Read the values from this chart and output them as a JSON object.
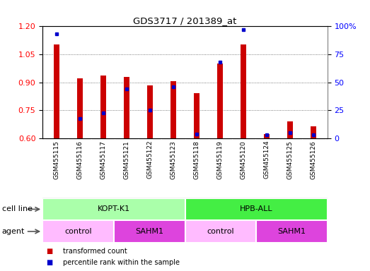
{
  "title": "GDS3717 / 201389_at",
  "samples": [
    "GSM455115",
    "GSM455116",
    "GSM455117",
    "GSM455121",
    "GSM455122",
    "GSM455123",
    "GSM455118",
    "GSM455119",
    "GSM455120",
    "GSM455124",
    "GSM455125",
    "GSM455126"
  ],
  "transformed_counts": [
    1.1,
    0.92,
    0.935,
    0.93,
    0.885,
    0.907,
    0.84,
    1.0,
    1.1,
    0.625,
    0.69,
    0.665
  ],
  "percentile_ranks": [
    93,
    18,
    23,
    44,
    25,
    46,
    4,
    68,
    97,
    3,
    5,
    3
  ],
  "ylim_left": [
    0.6,
    1.2
  ],
  "ylim_right": [
    0,
    100
  ],
  "yticks_left": [
    0.6,
    0.75,
    0.9,
    1.05,
    1.2
  ],
  "yticks_right": [
    0,
    25,
    50,
    75,
    100
  ],
  "bar_color": "#cc0000",
  "dot_color": "#0000cc",
  "bar_width": 0.25,
  "cell_line_groups": [
    {
      "label": "KOPT-K1",
      "start": 0,
      "end": 6,
      "color": "#aaffaa"
    },
    {
      "label": "HPB-ALL",
      "start": 6,
      "end": 12,
      "color": "#44ee44"
    }
  ],
  "agent_groups": [
    {
      "label": "control",
      "start": 0,
      "end": 3,
      "color": "#ffbbff"
    },
    {
      "label": "SAHM1",
      "start": 3,
      "end": 6,
      "color": "#dd44dd"
    },
    {
      "label": "control",
      "start": 6,
      "end": 9,
      "color": "#ffbbff"
    },
    {
      "label": "SAHM1",
      "start": 9,
      "end": 12,
      "color": "#dd44dd"
    }
  ],
  "legend_items": [
    {
      "label": "transformed count",
      "color": "#cc0000"
    },
    {
      "label": "percentile rank within the sample",
      "color": "#0000cc"
    }
  ],
  "cell_line_label": "cell line",
  "agent_label": "agent",
  "grid_color": "#555555",
  "plot_bg": "#ffffff",
  "fig_bg": "#ffffff",
  "xlabel_bg": "#cccccc"
}
